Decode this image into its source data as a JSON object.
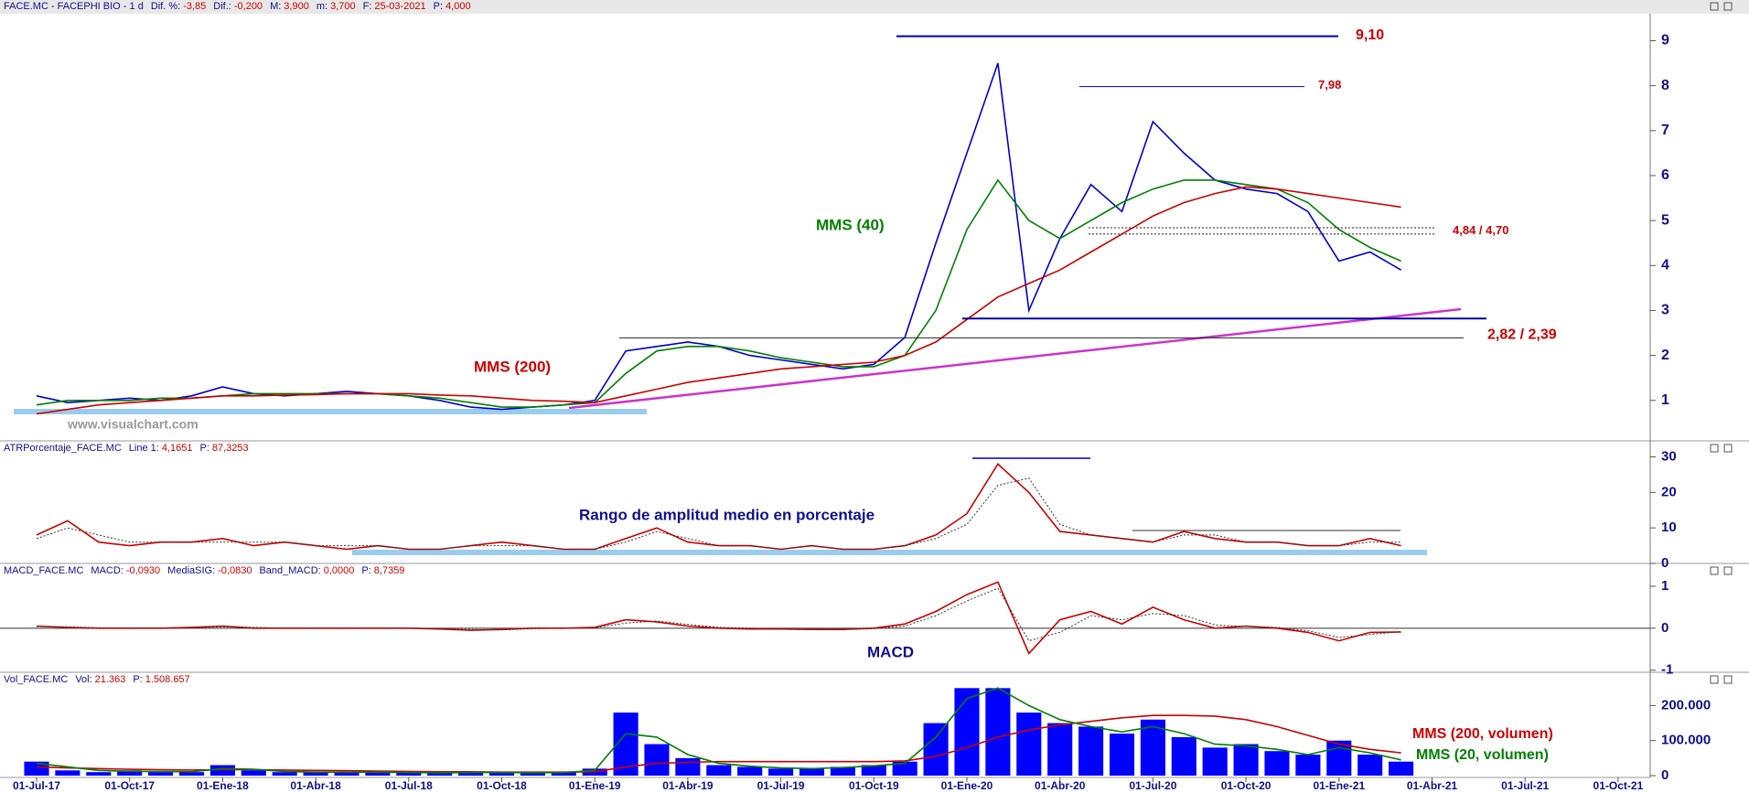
{
  "chart_data": [
    {
      "type": "line",
      "header_title": "FACE.MC - FACEPHI BIO - 1 d",
      "header_fields": [
        {
          "label": "Dif. %:",
          "value": "-3,85"
        },
        {
          "label": "Dif.:",
          "value": "-0,200"
        },
        {
          "label": "M:",
          "value": "3,900"
        },
        {
          "label": "m:",
          "value": "3,700"
        },
        {
          "label": "F:",
          "value": "25-03-2021"
        },
        {
          "label": "P:",
          "value": "4,000"
        }
      ],
      "watermark": "www.visualchart.com",
      "ylim": [
        0.1,
        9.6
      ],
      "yticks": [
        1,
        2,
        3,
        4,
        5,
        6,
        7,
        8,
        9
      ],
      "series": [
        {
          "color": "#0000cc",
          "values": [
            1.1,
            0.95,
            1.0,
            1.05,
            1.0,
            1.1,
            1.3,
            1.15,
            1.1,
            1.15,
            1.2,
            1.15,
            1.1,
            1.0,
            0.85,
            0.8,
            0.85,
            0.9,
            1.0,
            2.1,
            2.2,
            2.3,
            2.2,
            2.0,
            1.9,
            1.8,
            1.7,
            1.8,
            2.4,
            4.5,
            6.5,
            8.5,
            3.0,
            4.6,
            5.8,
            5.2,
            7.2,
            6.5,
            5.9,
            5.7,
            5.6,
            5.2,
            4.1,
            4.3,
            3.9,
            null,
            null,
            null,
            null,
            null,
            null,
            null
          ]
        },
        {
          "name": "MMS (40)",
          "color": "#008000",
          "values": [
            0.9,
            1.0,
            1.0,
            1.0,
            1.05,
            1.05,
            1.1,
            1.15,
            1.15,
            1.15,
            1.15,
            1.15,
            1.1,
            1.05,
            0.95,
            0.85,
            0.85,
            0.9,
            0.95,
            1.6,
            2.1,
            2.2,
            2.2,
            2.1,
            1.95,
            1.85,
            1.75,
            1.75,
            2.0,
            3.0,
            4.8,
            5.9,
            5.0,
            4.6,
            5.0,
            5.4,
            5.7,
            5.9,
            5.9,
            5.8,
            5.7,
            5.4,
            4.8,
            4.4,
            4.1,
            null,
            null,
            null,
            null,
            null,
            null,
            null
          ]
        },
        {
          "name": "MMS (200)",
          "color": "#cc0000",
          "values": [
            0.7,
            0.8,
            0.9,
            0.95,
            1.0,
            1.05,
            1.1,
            1.1,
            1.12,
            1.13,
            1.15,
            1.15,
            1.15,
            1.12,
            1.1,
            1.05,
            1.0,
            0.98,
            0.95,
            1.1,
            1.25,
            1.4,
            1.5,
            1.6,
            1.7,
            1.75,
            1.8,
            1.85,
            2.0,
            2.3,
            2.8,
            3.3,
            3.6,
            3.9,
            4.3,
            4.7,
            5.1,
            5.4,
            5.6,
            5.75,
            5.7,
            5.6,
            5.5,
            5.4,
            5.3,
            null,
            null,
            null,
            null,
            null,
            null,
            null
          ]
        }
      ],
      "levels": [
        {
          "values": [
            9.1
          ],
          "label": "9,10"
        },
        {
          "values": [
            7.98
          ],
          "label": "7,98"
        },
        {
          "values": [
            4.84,
            4.7
          ],
          "label": "4,84 / 4,70"
        },
        {
          "values": [
            2.82,
            2.39
          ],
          "label": "2,82 / 2,39"
        }
      ]
    },
    {
      "type": "line",
      "header_title": "ATRPorcentaje_FACE.MC",
      "header_fields": [
        {
          "label": "Line 1:",
          "value": "4,1651"
        },
        {
          "label": "P:",
          "value": "87,3253"
        }
      ],
      "annotation": "Rango de amplitud medio en porcentaje",
      "ylim": [
        0,
        34
      ],
      "yticks": [
        0,
        10,
        20,
        30
      ],
      "series": [
        {
          "color": "#cc0000",
          "values": [
            8,
            12,
            6,
            5,
            6,
            6,
            7,
            5,
            6,
            5,
            4,
            5,
            4,
            4,
            5,
            6,
            5,
            4,
            4,
            7,
            10,
            6,
            5,
            5,
            4,
            5,
            4,
            4,
            5,
            8,
            14,
            28,
            20,
            9,
            8,
            7,
            6,
            9,
            7,
            6,
            6,
            5,
            5,
            7,
            5,
            null,
            null,
            null,
            null,
            null,
            null,
            null
          ]
        },
        {
          "color": "#333333",
          "dash": true,
          "values": [
            7,
            10,
            8,
            6,
            6,
            6,
            6,
            6,
            6,
            5,
            5,
            5,
            4,
            4,
            5,
            5,
            5,
            4,
            4,
            6,
            9,
            7,
            5,
            5,
            4,
            5,
            4,
            4,
            5,
            7,
            11,
            22,
            24,
            11,
            8,
            7,
            6,
            8,
            8,
            6,
            6,
            5,
            5,
            6,
            6,
            null,
            null,
            null,
            null,
            null,
            null,
            null
          ]
        }
      ]
    },
    {
      "type": "line",
      "header_title": "MACD_FACE.MC",
      "header_fields": [
        {
          "label": "MACD:",
          "value": "-0,0930"
        },
        {
          "label": "MediaSIG:",
          "value": "-0,0830"
        },
        {
          "label": "Band_MACD:",
          "value": "0,0000"
        },
        {
          "label": "P:",
          "value": "8,7359"
        }
      ],
      "annotation": "MACD",
      "ylim": [
        -1.05,
        1.5
      ],
      "yticks": [
        -1,
        0,
        1
      ],
      "zero_line": true,
      "series": [
        {
          "color": "#cc0000",
          "values": [
            0.05,
            0.02,
            0.0,
            0.0,
            0.0,
            0.02,
            0.05,
            0.0,
            0.0,
            0.0,
            0.0,
            0.0,
            0.0,
            -0.02,
            -0.05,
            -0.03,
            0.0,
            0.0,
            0.02,
            0.2,
            0.15,
            0.05,
            0.0,
            -0.02,
            -0.02,
            -0.03,
            -0.03,
            0.0,
            0.1,
            0.4,
            0.8,
            1.1,
            -0.6,
            0.2,
            0.4,
            0.1,
            0.5,
            0.2,
            0.0,
            0.05,
            0.0,
            -0.1,
            -0.3,
            -0.1,
            -0.09,
            null,
            null,
            null,
            null,
            null,
            null,
            null
          ]
        },
        {
          "color": "#333333",
          "dash": true,
          "values": [
            0.04,
            0.03,
            0.01,
            0.0,
            0.0,
            0.01,
            0.03,
            0.02,
            0.0,
            0.0,
            0.0,
            0.0,
            0.0,
            -0.01,
            -0.03,
            -0.04,
            -0.01,
            0.0,
            0.01,
            0.12,
            0.17,
            0.09,
            0.02,
            0.0,
            -0.02,
            -0.02,
            -0.03,
            -0.01,
            0.05,
            0.3,
            0.65,
            0.95,
            -0.3,
            -0.1,
            0.3,
            0.2,
            0.35,
            0.3,
            0.08,
            0.04,
            0.02,
            -0.06,
            -0.22,
            -0.15,
            -0.08,
            null,
            null,
            null,
            null,
            null,
            null,
            null
          ]
        }
      ]
    },
    {
      "type": "bar",
      "header_title": "Vol_FACE.MC",
      "header_fields": [
        {
          "label": "Vol:",
          "value": "21.363"
        },
        {
          "label": "P:",
          "value": "1.508.657"
        }
      ],
      "categories": [
        "01-Jul-17",
        null,
        null,
        "01-Oct-17",
        null,
        null,
        "01-Ene-18",
        null,
        null,
        "01-Abr-18",
        null,
        null,
        "01-Jul-18",
        null,
        null,
        "01-Oct-18",
        null,
        null,
        "01-Ene-19",
        null,
        null,
        "01-Abr-19",
        null,
        null,
        "01-Jul-19",
        null,
        null,
        "01-Oct-19",
        null,
        null,
        "01-Ene-20",
        null,
        null,
        "01-Abr-20",
        null,
        null,
        "01-Jul-20",
        null,
        null,
        "01-Oct-20",
        null,
        null,
        "01-Ene-21",
        null,
        null,
        "01-Abr-21",
        null,
        null,
        "01-Jul-21",
        null,
        null,
        "01-Oct-21"
      ],
      "ylim": [
        0,
        290000
      ],
      "yticks": [
        0,
        {
          "value": 100000,
          "label": "100.000"
        },
        {
          "value": 200000,
          "label": "200.000"
        }
      ],
      "series": [
        {
          "color": "#0000ff",
          "render": "bar",
          "values": [
            40000,
            15000,
            10000,
            15000,
            10000,
            10000,
            30000,
            15000,
            10000,
            10000,
            10000,
            10000,
            8000,
            8000,
            10000,
            8000,
            8000,
            10000,
            20000,
            180000,
            90000,
            50000,
            30000,
            25000,
            20000,
            20000,
            25000,
            30000,
            40000,
            150000,
            250000,
            250000,
            180000,
            150000,
            140000,
            120000,
            160000,
            110000,
            80000,
            90000,
            70000,
            60000,
            100000,
            60000,
            40000,
            null,
            null,
            null,
            null,
            null,
            null,
            null
          ]
        },
        {
          "name": "MMS (200, volumen)",
          "color": "#cc0000",
          "values": [
            25000,
            22000,
            20000,
            18000,
            17000,
            16000,
            17000,
            17000,
            16000,
            15000,
            14000,
            13000,
            12000,
            11000,
            11000,
            10000,
            10000,
            10000,
            11000,
            25000,
            35000,
            38000,
            40000,
            40000,
            40000,
            40000,
            40000,
            40000,
            42000,
            55000,
            80000,
            110000,
            130000,
            145000,
            155000,
            165000,
            172000,
            172000,
            170000,
            160000,
            140000,
            115000,
            90000,
            75000,
            65000,
            null,
            null,
            null,
            null,
            null,
            null,
            null
          ]
        },
        {
          "name": "MMS (20, volumen)",
          "color": "#008000",
          "values": [
            35000,
            25000,
            15000,
            12000,
            12000,
            11000,
            20000,
            18000,
            12000,
            10000,
            10000,
            10000,
            9000,
            8000,
            9000,
            9000,
            8000,
            9000,
            15000,
            120000,
            110000,
            60000,
            35000,
            27000,
            22000,
            20000,
            23000,
            28000,
            35000,
            110000,
            220000,
            250000,
            200000,
            160000,
            140000,
            125000,
            140000,
            120000,
            90000,
            85000,
            75000,
            60000,
            80000,
            65000,
            45000,
            null,
            null,
            null,
            null,
            null,
            null,
            null
          ]
        }
      ]
    }
  ]
}
